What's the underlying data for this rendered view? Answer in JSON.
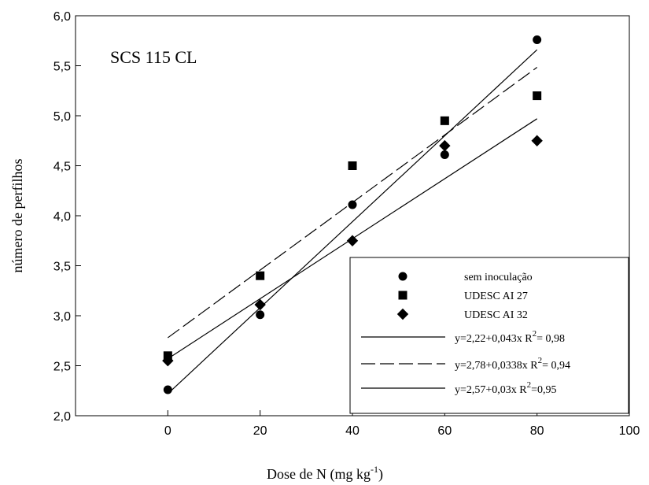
{
  "chart_data": {
    "type": "scatter",
    "annotation": "SCS 115 CL",
    "xlabel": "Dose de N (mg kg",
    "xlabel_sup": "-1",
    "xlabel_end": ")",
    "ylabel": "número de perfilhos",
    "xlim": [
      -20,
      100
    ],
    "ylim": [
      2.0,
      6.0
    ],
    "x_ticks": [
      "0",
      "20",
      "40",
      "60",
      "80",
      "100"
    ],
    "x_tick_values": [
      0,
      20,
      40,
      60,
      80,
      100
    ],
    "y_ticks": [
      "2,0",
      "2,5",
      "3,0",
      "3,5",
      "4,0",
      "4,5",
      "5,0",
      "5,5",
      "6,0"
    ],
    "y_tick_values": [
      2.0,
      2.5,
      3.0,
      3.5,
      4.0,
      4.5,
      5.0,
      5.5,
      6.0
    ],
    "grid": false,
    "legend_placement": "bottom-right",
    "series": [
      {
        "name": "sem inoculação",
        "marker": "circle",
        "x": [
          0,
          20,
          40,
          60,
          80
        ],
        "y": [
          2.26,
          3.01,
          4.11,
          4.61,
          5.76
        ],
        "fit": {
          "intercept": 2.22,
          "slope": 0.043,
          "style": "solid",
          "label": "y=2,22+0,043x  R",
          "r2": "= 0,98"
        }
      },
      {
        "name": "UDESC AI 27",
        "marker": "square",
        "x": [
          0,
          20,
          40,
          60,
          80
        ],
        "y": [
          2.6,
          3.4,
          4.5,
          4.95,
          5.2
        ],
        "fit": {
          "intercept": 2.78,
          "slope": 0.0338,
          "style": "dashed",
          "label": "y=2,78+0,0338x  R",
          "r2": "= 0,94"
        }
      },
      {
        "name": "UDESC AI 32",
        "marker": "diamond",
        "x": [
          0,
          20,
          40,
          60,
          80
        ],
        "y": [
          2.55,
          3.11,
          3.75,
          4.7,
          4.75
        ],
        "fit": {
          "intercept": 2.57,
          "slope": 0.03,
          "style": "solid",
          "label": "y=2,57+0,03x  R",
          "r2": "=0,95"
        }
      }
    ]
  }
}
